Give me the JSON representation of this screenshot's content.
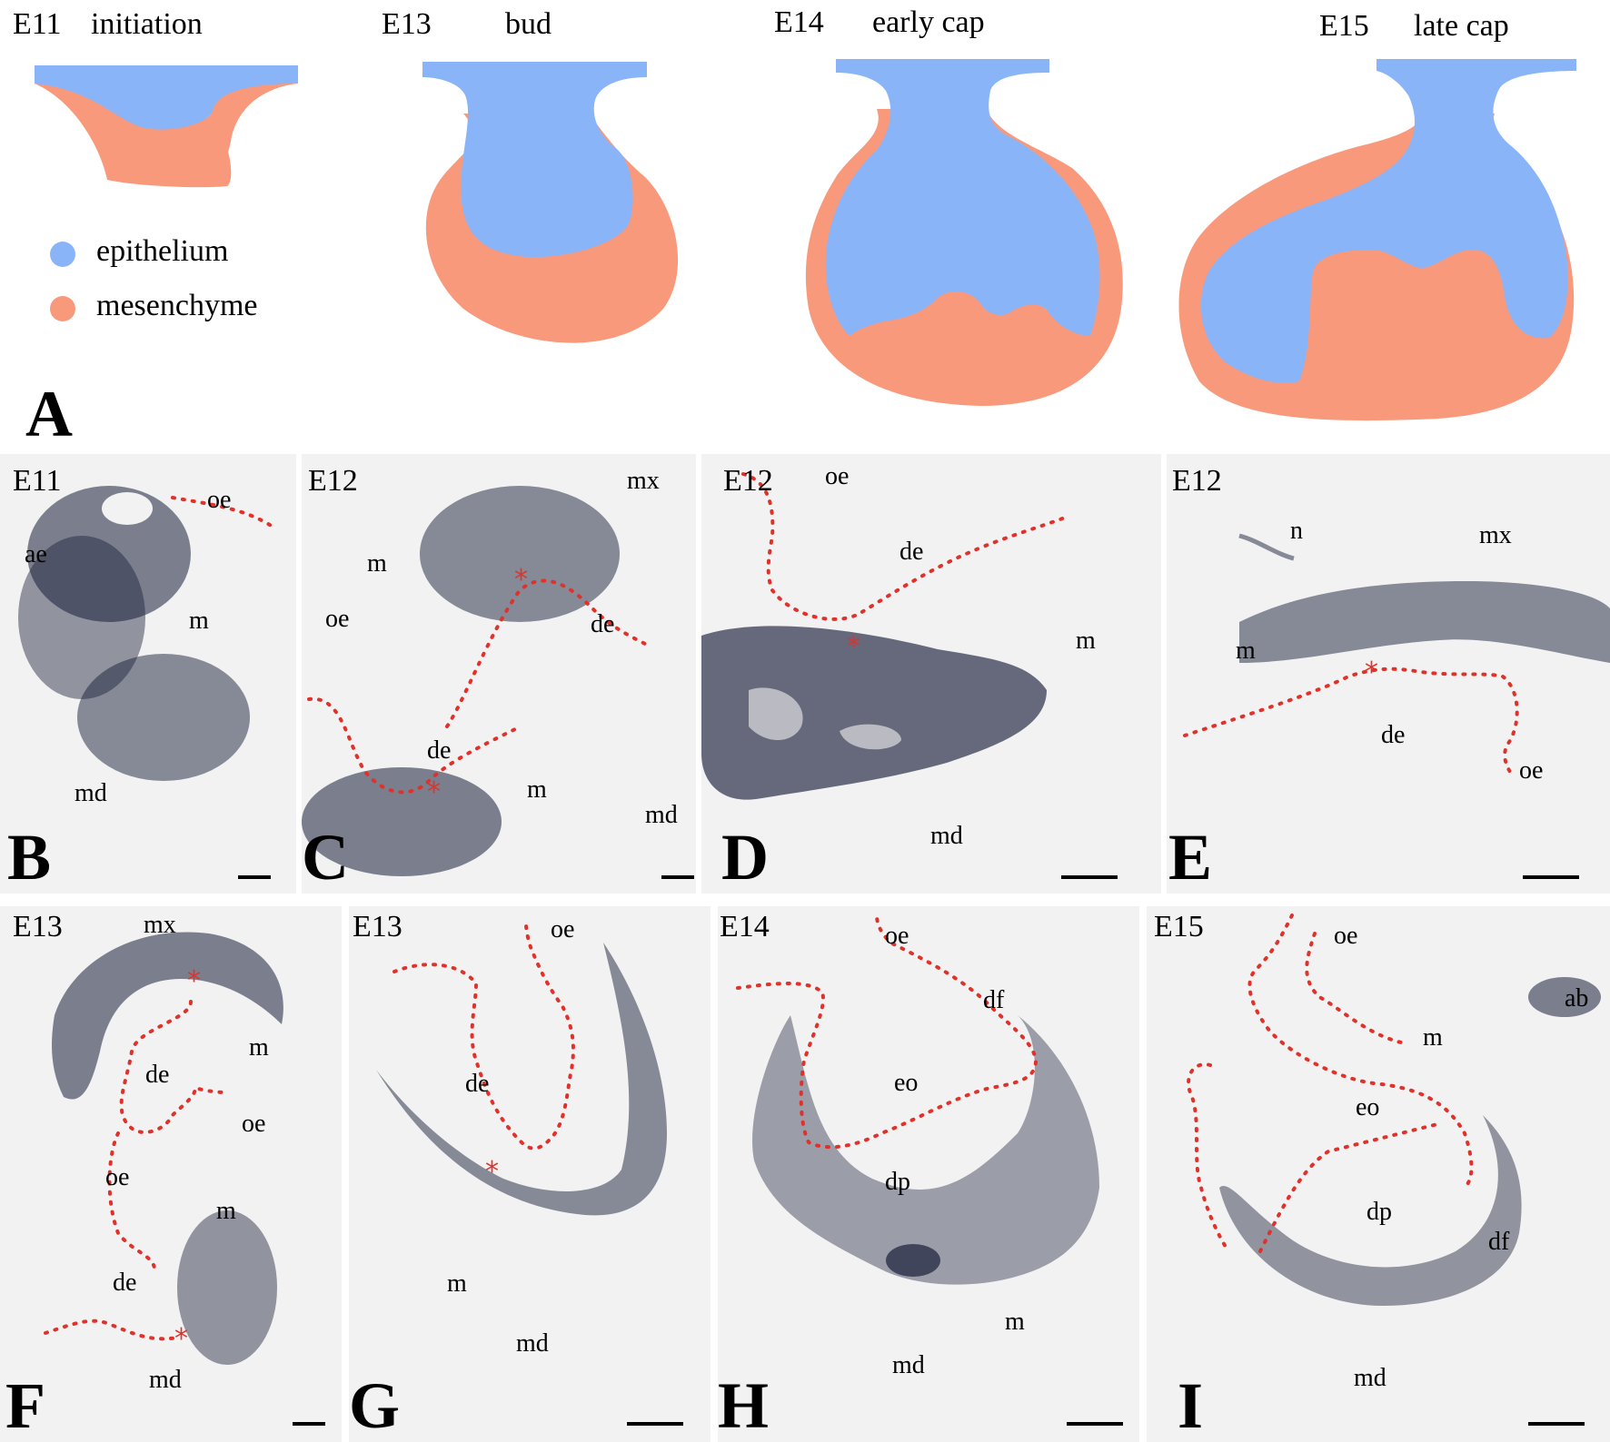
{
  "colors": {
    "epithelium": "#8ab4f8",
    "mesenchyme": "#f9997c",
    "boundary": "#e0322b",
    "stain": "#1a1f3a",
    "background": "#f2f2f2"
  },
  "schematic": {
    "panel_label": "A",
    "stages": [
      {
        "stage": "E11",
        "name": "initiation"
      },
      {
        "stage": "E13",
        "name": "bud"
      },
      {
        "stage": "E14",
        "name": "early cap"
      },
      {
        "stage": "E15",
        "name": "late cap"
      }
    ],
    "legend": [
      {
        "label": "epithelium",
        "color": "#8ab4f8"
      },
      {
        "label": "mesenchyme",
        "color": "#f9997c"
      }
    ]
  },
  "panels": [
    {
      "letter": "B",
      "stage": "E11",
      "labels": [
        "ae",
        "oe",
        "m",
        "md"
      ]
    },
    {
      "letter": "C",
      "stage": "E12",
      "labels": [
        "mx",
        "m",
        "oe",
        "de",
        "de",
        "m",
        "md"
      ]
    },
    {
      "letter": "D",
      "stage": "E12",
      "labels": [
        "oe",
        "de",
        "m",
        "md"
      ]
    },
    {
      "letter": "E",
      "stage": "E12",
      "labels": [
        "n",
        "mx",
        "m",
        "de",
        "oe"
      ]
    },
    {
      "letter": "F",
      "stage": "E13",
      "labels": [
        "mx",
        "de",
        "m",
        "oe",
        "oe",
        "m",
        "de",
        "md"
      ]
    },
    {
      "letter": "G",
      "stage": "E13",
      "labels": [
        "oe",
        "de",
        "m",
        "md"
      ]
    },
    {
      "letter": "H",
      "stage": "E14",
      "labels": [
        "oe",
        "df",
        "eo",
        "dp",
        "m",
        "md"
      ]
    },
    {
      "letter": "I",
      "stage": "E15",
      "labels": [
        "oe",
        "ab",
        "m",
        "eo",
        "dp",
        "df",
        "md"
      ]
    }
  ]
}
